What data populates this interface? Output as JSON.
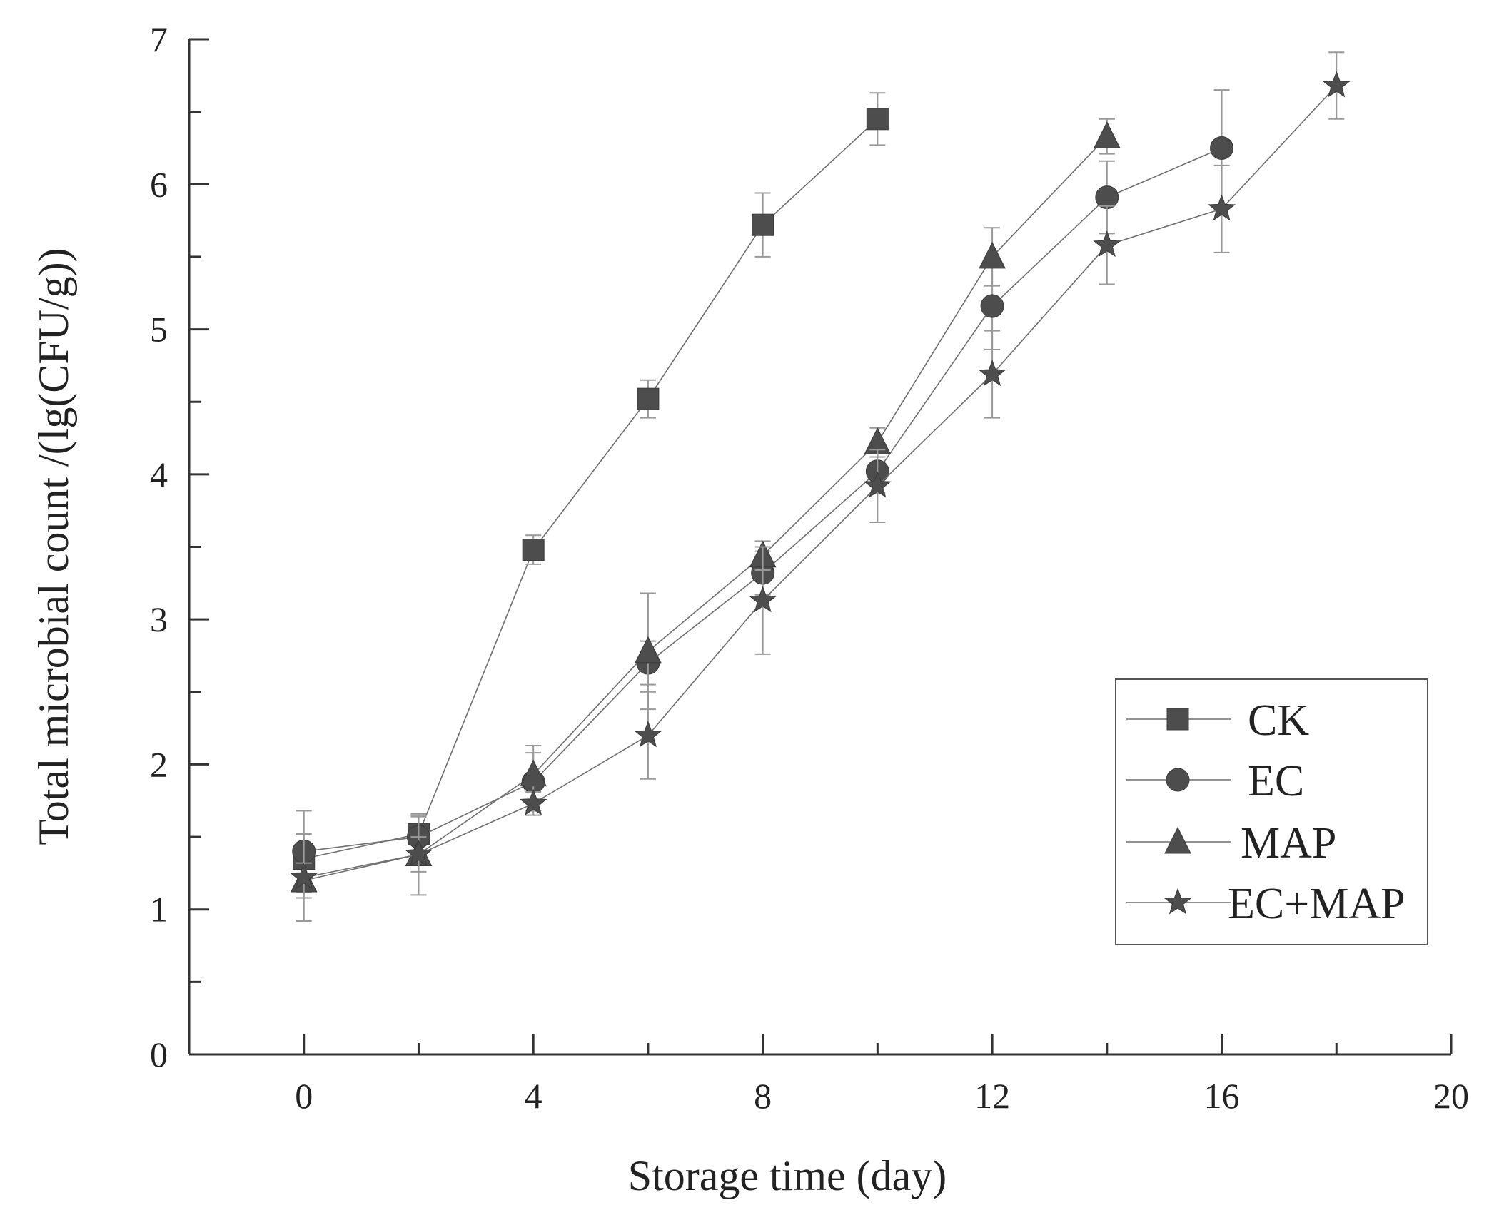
{
  "chart_data": {
    "type": "line",
    "title": "",
    "xlabel": "Storage time (day)",
    "ylabel": "Total microbial count /(lg(CFU/g))",
    "xlim": [
      -2,
      20
    ],
    "ylim": [
      0,
      7
    ],
    "x_ticks": [
      0,
      4,
      8,
      12,
      16,
      20
    ],
    "x_tick_labels": [
      "0",
      "4",
      "8",
      "12",
      "16",
      "20"
    ],
    "x_minor_ticks": [
      2,
      6,
      10,
      14,
      18
    ],
    "y_ticks": [
      0,
      1,
      2,
      3,
      4,
      5,
      6,
      7
    ],
    "y_tick_labels": [
      "0",
      "1",
      "2",
      "3",
      "4",
      "5",
      "6",
      "7"
    ],
    "grid": false,
    "legend_position": "bottom-right",
    "series": [
      {
        "name": "CK",
        "marker": "square",
        "x": [
          0,
          2,
          4,
          6,
          8,
          10
        ],
        "values": [
          1.35,
          1.52,
          3.48,
          4.52,
          5.72,
          6.45
        ],
        "errors": [
          0.1,
          0.12,
          0.1,
          0.13,
          0.22,
          0.18
        ]
      },
      {
        "name": "EC",
        "marker": "circle",
        "x": [
          0,
          2,
          4,
          6,
          8,
          10,
          12,
          14,
          16
        ],
        "values": [
          1.4,
          1.5,
          1.88,
          2.7,
          3.32,
          4.02,
          5.16,
          5.91,
          6.25
        ],
        "errors": [
          0.28,
          0.15,
          0.2,
          0.15,
          0.15,
          0.15,
          0.3,
          0.25,
          0.4
        ]
      },
      {
        "name": "MAP",
        "marker": "triangle",
        "x": [
          0,
          2,
          4,
          6,
          8,
          10,
          12,
          14
        ],
        "values": [
          1.2,
          1.38,
          1.93,
          2.78,
          3.44,
          4.22,
          5.5,
          6.33
        ],
        "errors": [
          0.12,
          0.12,
          0.2,
          0.4,
          0.1,
          0.1,
          0.2,
          0.12
        ]
      },
      {
        "name": "EC+MAP",
        "marker": "star",
        "x": [
          0,
          2,
          4,
          6,
          8,
          10,
          12,
          14,
          16,
          18
        ],
        "values": [
          1.22,
          1.38,
          1.73,
          2.2,
          3.13,
          3.92,
          4.69,
          5.58,
          5.83,
          6.68
        ],
        "errors": [
          0.3,
          0.28,
          0.08,
          0.3,
          0.37,
          0.25,
          0.3,
          0.27,
          0.3,
          0.23
        ]
      }
    ]
  }
}
